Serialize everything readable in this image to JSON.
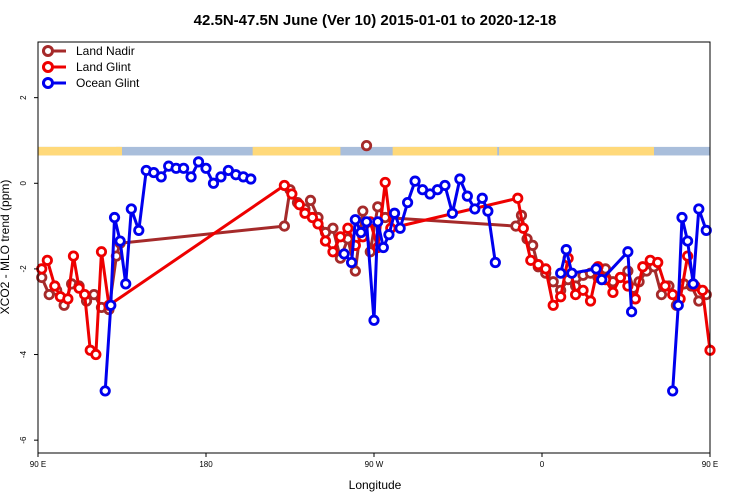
{
  "chart_data": {
    "type": "line",
    "title": "42.5N-47.5N June (Ver 10)   2015-01-01 to 2020-12-18",
    "xlabel": "Longitude",
    "ylabel": "XCO2 - MLO trend (ppm)",
    "xlim": [
      90,
      450
    ],
    "ylim": [
      -6.3,
      3.3
    ],
    "x_ticks": [
      {
        "value": 90,
        "label": "90 E"
      },
      {
        "value": 180,
        "label": "180"
      },
      {
        "value": 270,
        "label": "90 W"
      },
      {
        "value": 360,
        "label": "0"
      },
      {
        "value": 450,
        "label": "90 E"
      },
      {
        "value": 540,
        "label": "180"
      }
    ],
    "y_ticks": [
      2,
      0,
      -2,
      -4,
      -6
    ],
    "legend_position": "top-left",
    "land_mask_band": {
      "y_range": [
        0.65,
        0.85
      ],
      "land_color": "#ffd97a",
      "ocean_color": "#a9bedb",
      "land_segments": [
        [
          90,
          134
        ],
        [
          132,
          135
        ],
        [
          205,
          252
        ],
        [
          280,
          336
        ],
        [
          337,
          420
        ]
      ]
    },
    "series": [
      {
        "name": "Land Nadir",
        "color": "#a52a2a",
        "points": [
          [
            92,
            -2.2
          ],
          [
            96,
            -2.6
          ],
          [
            100,
            -2.5
          ],
          [
            104,
            -2.85
          ],
          [
            108,
            -2.35
          ],
          [
            112,
            -2.4
          ],
          [
            116,
            -2.75
          ],
          [
            120,
            -2.6
          ],
          [
            124,
            -2.9
          ],
          [
            128,
            -2.95
          ],
          [
            132,
            -1.7
          ],
          [
            134,
            -1.4
          ],
          [
            222,
            -1.0
          ],
          [
            225,
            -0.15
          ],
          [
            229,
            -0.45
          ],
          [
            233,
            -0.6
          ],
          [
            236,
            -0.4
          ],
          [
            240,
            -0.8
          ],
          [
            244,
            -1.15
          ],
          [
            248,
            -1.05
          ],
          [
            252,
            -1.75
          ],
          [
            256,
            -1.3
          ],
          [
            260,
            -2.05
          ],
          [
            264,
            -0.65
          ],
          [
            268,
            -1.6
          ],
          [
            272,
            -0.55
          ],
          [
            276,
            -0.8
          ],
          [
            346,
            -1.0
          ],
          [
            349,
            -0.75
          ],
          [
            352,
            -1.3
          ],
          [
            355,
            -1.45
          ],
          [
            358,
            -1.95
          ],
          [
            362,
            -2.1
          ],
          [
            366,
            -2.3
          ],
          [
            370,
            -2.5
          ],
          [
            374,
            -2.25
          ],
          [
            378,
            -2.4
          ],
          [
            382,
            -2.15
          ],
          [
            386,
            -2.1
          ],
          [
            390,
            -2.2
          ],
          [
            394,
            -2.0
          ],
          [
            398,
            -2.3
          ],
          [
            402,
            -2.2
          ],
          [
            406,
            -2.05
          ],
          [
            409,
            -2.45
          ],
          [
            412,
            -2.3
          ],
          [
            416,
            -2.05
          ],
          [
            420,
            -1.95
          ],
          [
            424,
            -2.6
          ],
          [
            428,
            -2.4
          ],
          [
            432,
            -2.85
          ],
          [
            436,
            -2.35
          ],
          [
            440,
            -2.4
          ],
          [
            444,
            -2.75
          ],
          [
            448,
            -2.6
          ],
          [
            452,
            -2.85
          ]
        ],
        "extra_points": [
          [
            266,
            0.88
          ]
        ]
      },
      {
        "name": "Land Glint",
        "color": "#ee0000",
        "points": [
          [
            92,
            -2.0
          ],
          [
            95,
            -1.8
          ],
          [
            99,
            -2.4
          ],
          [
            102,
            -2.65
          ],
          [
            106,
            -2.7
          ],
          [
            109,
            -1.7
          ],
          [
            112,
            -2.45
          ],
          [
            115,
            -2.6
          ],
          [
            118,
            -3.9
          ],
          [
            121,
            -4.0
          ],
          [
            124,
            -1.6
          ],
          [
            128,
            -2.85
          ],
          [
            222,
            -0.05
          ],
          [
            226,
            -0.25
          ],
          [
            230,
            -0.5
          ],
          [
            233,
            -0.7
          ],
          [
            237,
            -0.8
          ],
          [
            240,
            -0.95
          ],
          [
            244,
            -1.35
          ],
          [
            248,
            -1.6
          ],
          [
            252,
            -1.25
          ],
          [
            256,
            -1.05
          ],
          [
            260,
            -1.45
          ],
          [
            264,
            -1.25
          ],
          [
            268,
            -0.9
          ],
          [
            272,
            -1.5
          ],
          [
            276,
            0.02
          ],
          [
            279,
            -1.05
          ],
          [
            347,
            -0.35
          ],
          [
            350,
            -1.05
          ],
          [
            354,
            -1.8
          ],
          [
            358,
            -1.9
          ],
          [
            362,
            -2.0
          ],
          [
            366,
            -2.85
          ],
          [
            370,
            -2.65
          ],
          [
            374,
            -1.75
          ],
          [
            378,
            -2.6
          ],
          [
            382,
            -2.5
          ],
          [
            386,
            -2.75
          ],
          [
            390,
            -1.95
          ],
          [
            394,
            -2.25
          ],
          [
            398,
            -2.55
          ],
          [
            402,
            -2.2
          ],
          [
            406,
            -2.4
          ],
          [
            410,
            -2.7
          ],
          [
            414,
            -1.95
          ],
          [
            418,
            -1.8
          ],
          [
            422,
            -1.85
          ],
          [
            426,
            -2.4
          ],
          [
            430,
            -2.6
          ],
          [
            434,
            -2.7
          ],
          [
            438,
            -1.7
          ],
          [
            442,
            -2.4
          ],
          [
            446,
            -2.5
          ],
          [
            450,
            -3.9
          ],
          [
            453,
            -4.0
          ],
          [
            456,
            -1.6
          ],
          [
            459,
            -2.85
          ]
        ]
      },
      {
        "name": "Ocean Glint",
        "color": "#0000ee",
        "points": [
          [
            126,
            -4.85
          ],
          [
            129,
            -2.85
          ],
          [
            131,
            -0.8
          ],
          [
            134,
            -1.35
          ],
          [
            137,
            -2.35
          ],
          [
            140,
            -0.6
          ],
          [
            144,
            -1.1
          ],
          [
            148,
            0.3
          ],
          [
            152,
            0.25
          ],
          [
            156,
            0.15
          ],
          [
            160,
            0.4
          ],
          [
            164,
            0.35
          ],
          [
            168,
            0.35
          ],
          [
            172,
            0.15
          ],
          [
            176,
            0.5
          ],
          [
            180,
            0.35
          ],
          [
            184,
            0.0
          ],
          [
            188,
            0.15
          ],
          [
            192,
            0.3
          ],
          [
            196,
            0.2
          ],
          [
            200,
            0.15
          ],
          [
            204,
            0.1
          ]
        ],
        "points_2": [
          [
            254,
            -1.65
          ],
          [
            258,
            -1.85
          ],
          [
            260,
            -0.85
          ],
          [
            263,
            -1.15
          ],
          [
            266,
            -0.9
          ],
          [
            270,
            -3.2
          ],
          [
            272,
            -0.9
          ],
          [
            275,
            -1.5
          ],
          [
            278,
            -1.2
          ],
          [
            281,
            -0.7
          ],
          [
            284,
            -1.05
          ],
          [
            288,
            -0.45
          ],
          [
            292,
            0.05
          ],
          [
            296,
            -0.15
          ],
          [
            300,
            -0.25
          ],
          [
            304,
            -0.15
          ],
          [
            308,
            -0.05
          ],
          [
            312,
            -0.7
          ],
          [
            316,
            0.1
          ],
          [
            320,
            -0.3
          ],
          [
            324,
            -0.6
          ],
          [
            328,
            -0.35
          ],
          [
            331,
            -0.65
          ],
          [
            335,
            -1.85
          ]
        ],
        "points_3": [
          [
            370,
            -2.1
          ],
          [
            373,
            -1.55
          ],
          [
            376,
            -2.1
          ],
          [
            389,
            -2.0
          ],
          [
            392,
            -2.25
          ],
          [
            406,
            -1.6
          ],
          [
            408,
            -3.0
          ]
        ],
        "points_4": [
          [
            430,
            -4.85
          ],
          [
            433,
            -2.85
          ],
          [
            435,
            -0.8
          ],
          [
            438,
            -1.35
          ],
          [
            441,
            -2.35
          ],
          [
            444,
            -0.6
          ],
          [
            448,
            -1.1
          ],
          [
            452,
            0.3
          ],
          [
            455,
            0.25
          ],
          [
            458,
            0.15
          ]
        ]
      }
    ]
  }
}
